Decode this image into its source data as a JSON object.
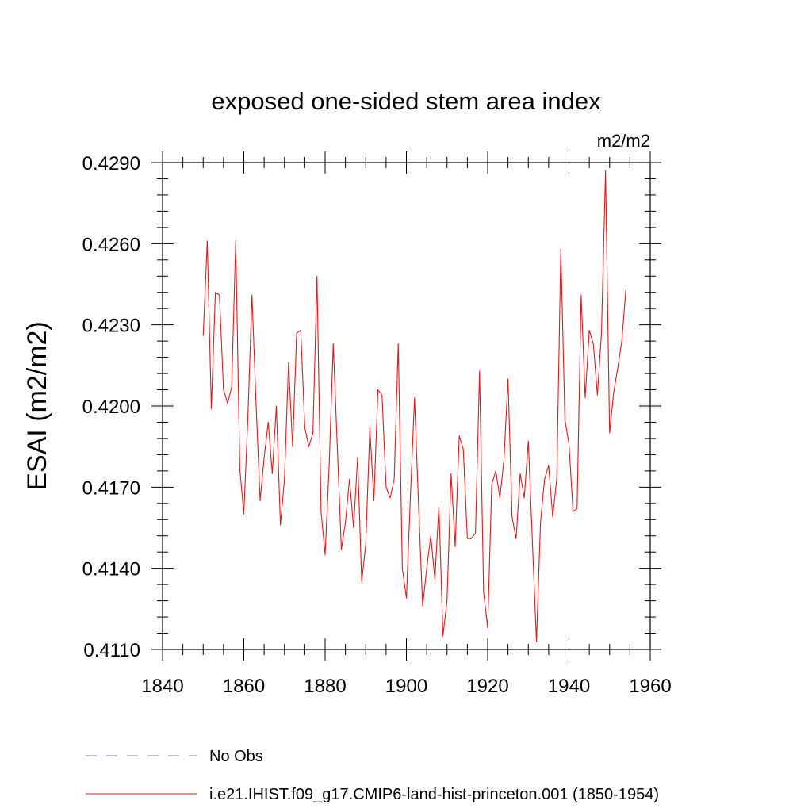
{
  "chart_data": {
    "type": "line",
    "title": "exposed one-sided stem area index",
    "units": "m2/m2",
    "ylabel": "ESAI  (m2/m2)",
    "xlabel": "",
    "xlim": [
      1840,
      1960
    ],
    "ylim": [
      0.411,
      0.429
    ],
    "x_ticks": [
      1840,
      1860,
      1880,
      1900,
      1920,
      1940,
      1960
    ],
    "y_ticks": [
      "0.4110",
      "0.4140",
      "0.4170",
      "0.4200",
      "0.4230",
      "0.4260",
      "0.4290"
    ],
    "legend_position": "bottom",
    "legend": [
      {
        "label": "No Obs",
        "style": "dashed",
        "color": "#8a80c0"
      },
      {
        "label": "i.e21.IHIST.f09_g17.CMIP6-land-hist-princeton.001 (1850-1954)",
        "style": "solid",
        "color": "#e31a1c"
      }
    ],
    "series": [
      {
        "name": "i.e21.IHIST.f09_g17.CMIP6-land-hist-princeton.001 (1850-1954)",
        "color": "#e31a1c",
        "x_start": 1850,
        "values": [
          0.4226,
          0.4261,
          0.4199,
          0.4242,
          0.4241,
          0.4206,
          0.4201,
          0.4207,
          0.4261,
          0.4177,
          0.416,
          0.4196,
          0.4241,
          0.4201,
          0.4165,
          0.4181,
          0.4194,
          0.4175,
          0.42,
          0.4156,
          0.4173,
          0.4216,
          0.4185,
          0.4227,
          0.4228,
          0.4192,
          0.4185,
          0.419,
          0.4248,
          0.4161,
          0.4145,
          0.4178,
          0.4223,
          0.4185,
          0.4147,
          0.4157,
          0.4173,
          0.4155,
          0.4181,
          0.4135,
          0.4149,
          0.4192,
          0.4165,
          0.4206,
          0.4204,
          0.417,
          0.4166,
          0.4173,
          0.4223,
          0.414,
          0.4129,
          0.4167,
          0.4203,
          0.4163,
          0.4126,
          0.414,
          0.4152,
          0.4136,
          0.4163,
          0.4115,
          0.4128,
          0.4175,
          0.4148,
          0.4189,
          0.4184,
          0.4151,
          0.4151,
          0.4153,
          0.4213,
          0.4131,
          0.4118,
          0.4171,
          0.4176,
          0.4166,
          0.418,
          0.421,
          0.4159,
          0.4151,
          0.4175,
          0.4166,
          0.4187,
          0.415,
          0.4113,
          0.4157,
          0.4173,
          0.4178,
          0.4159,
          0.4173,
          0.4258,
          0.4195,
          0.4186,
          0.4161,
          0.4162,
          0.4241,
          0.4203,
          0.4228,
          0.4223,
          0.4204,
          0.4227,
          0.4287,
          0.419,
          0.4205,
          0.4214,
          0.4224,
          0.4243
        ]
      }
    ]
  }
}
